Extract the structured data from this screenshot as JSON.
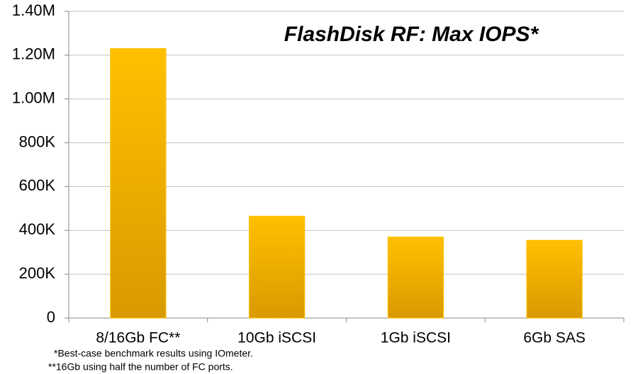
{
  "chart_data": {
    "type": "bar",
    "title": "FlashDisk RF: Max IOPS*",
    "categories": [
      "8/16Gb FC**",
      "10Gb iSCSI",
      "1Gb iSCSI",
      "6Gb SAS"
    ],
    "values": [
      1230000,
      465000,
      370000,
      355000
    ],
    "color": "#ffc000",
    "ylim": [
      0,
      1400000
    ],
    "yticks": [
      0,
      {
        "value": 200000,
        "label": "200K"
      },
      {
        "value": 400000,
        "label": "400K"
      },
      {
        "value": 600000,
        "label": "600K"
      },
      {
        "value": 800000,
        "label": "800K"
      },
      {
        "value": 1000000,
        "label": "1.00M"
      },
      {
        "value": 1200000,
        "label": "1.20M"
      },
      {
        "value": 1400000,
        "label": "1.40M"
      }
    ],
    "grid": true,
    "footnotes": [
      "*Best-case benchmark results using IOmeter.",
      "**16Gb using half the number of FC ports."
    ]
  }
}
